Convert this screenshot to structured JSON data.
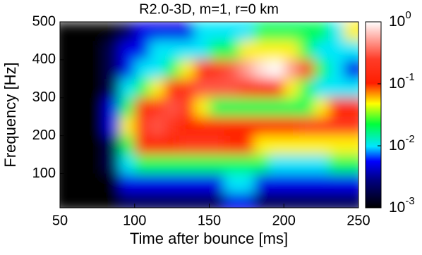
{
  "chart_data": {
    "type": "heatmap",
    "title": "R2.0-3D, m=1, r=0 km",
    "x_label": "Time after bounce [ms]",
    "y_label": "Frequency [Hz]",
    "x": [
      55,
      65,
      75,
      85,
      95,
      105,
      115,
      125,
      135,
      145,
      155,
      165,
      175,
      185,
      195,
      205,
      215,
      225,
      235,
      245
    ],
    "y": [
      475,
      425,
      375,
      325,
      275,
      225,
      175,
      125,
      75,
      25
    ],
    "z": [
      [
        0.001,
        0.001,
        0.001,
        0.001,
        0.002,
        0.005,
        0.005,
        0.005,
        0.005,
        0.01,
        0.01,
        0.01,
        0.01,
        0.02,
        0.02,
        0.02,
        0.02,
        0.02,
        0.01,
        0.05
      ],
      [
        0.001,
        0.001,
        0.001,
        0.002,
        0.005,
        0.005,
        0.01,
        0.01,
        0.01,
        0.01,
        0.02,
        0.02,
        0.05,
        0.05,
        0.05,
        0.05,
        0.02,
        0.01,
        0.01,
        0.01
      ],
      [
        0.001,
        0.001,
        0.001,
        0.002,
        0.005,
        0.01,
        0.01,
        0.02,
        0.05,
        0.1,
        0.2,
        0.3,
        0.5,
        0.8,
        1,
        0.5,
        0.1,
        0.02,
        0.01,
        0.005
      ],
      [
        0.001,
        0.001,
        0.001,
        0.002,
        0.01,
        0.02,
        0.05,
        0.1,
        0.2,
        0.3,
        0.3,
        0.3,
        0.2,
        0.1,
        0.1,
        0.05,
        0.02,
        0.01,
        0.01,
        0.01
      ],
      [
        0.001,
        0.001,
        0.001,
        0.005,
        0.02,
        0.1,
        0.2,
        0.3,
        0.2,
        0.05,
        0.02,
        0.02,
        0.02,
        0.02,
        0.02,
        0.02,
        0.02,
        0.05,
        0.1,
        0.1
      ],
      [
        0.001,
        0.001,
        0.001,
        0.005,
        0.05,
        0.2,
        0.3,
        0.2,
        0.1,
        0.1,
        0.1,
        0.1,
        0.1,
        0.1,
        0.1,
        0.1,
        0.2,
        0.2,
        0.2,
        0.2
      ],
      [
        0.001,
        0.001,
        0.001,
        0.002,
        0.02,
        0.1,
        0.1,
        0.1,
        0.2,
        0.2,
        0.2,
        0.1,
        0.1,
        0.05,
        0.05,
        0.05,
        0.05,
        0.05,
        0.05,
        0.05
      ],
      [
        0.001,
        0.001,
        0.001,
        0.002,
        0.01,
        0.02,
        0.02,
        0.02,
        0.02,
        0.02,
        0.02,
        0.02,
        0.02,
        0.02,
        0.01,
        0.01,
        0.01,
        0.01,
        0.02,
        0.02
      ],
      [
        0.001,
        0.001,
        0.001,
        0.001,
        0.005,
        0.005,
        0.005,
        0.005,
        0.005,
        0.005,
        0.005,
        0.01,
        0.01,
        0.005,
        0.005,
        0.005,
        0.005,
        0.005,
        0.005,
        0.005
      ],
      [
        0.001,
        0.001,
        0.001,
        0.001,
        0.002,
        0.002,
        0.002,
        0.002,
        0.002,
        0.002,
        0.002,
        0.005,
        0.005,
        0.002,
        0.002,
        0.002,
        0.002,
        0.002,
        0.002,
        0.002
      ]
    ],
    "xlim": [
      50,
      250
    ],
    "xticks": [
      50,
      100,
      150,
      200,
      250
    ],
    "ylim": [
      10,
      500
    ],
    "yticks": [
      100,
      200,
      300,
      400,
      500
    ],
    "zlim": [
      0.001,
      1
    ],
    "zscale": "log",
    "zticks": [
      {
        "value": 1,
        "label": "10",
        "exponent": "0"
      },
      {
        "value": 0.1,
        "label": "10",
        "exponent": "-1"
      },
      {
        "value": 0.01,
        "label": "10",
        "exponent": "-2"
      },
      {
        "value": 0.001,
        "label": "10",
        "exponent": "-3"
      }
    ]
  }
}
